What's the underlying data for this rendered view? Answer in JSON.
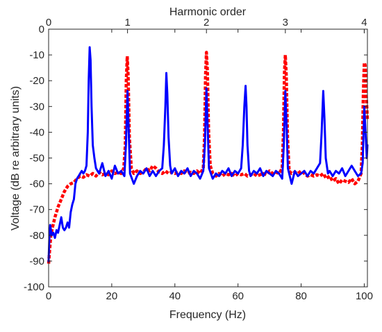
{
  "chart_data": {
    "type": "line",
    "xlabel": "Frequency (Hz)",
    "ylabel": "Voltage (dB re arbitrary units)",
    "top_axis_label": "Harmonic order",
    "xlim": [
      0,
      101
    ],
    "ylim": [
      -100,
      0
    ],
    "x_ticks": [
      0,
      20,
      40,
      60,
      80,
      100
    ],
    "y_ticks": [
      0,
      -10,
      -20,
      -30,
      -40,
      -50,
      -60,
      -70,
      -80,
      -90,
      -100
    ],
    "top_ticks": [
      {
        "label": "0",
        "x": 0
      },
      {
        "label": "1",
        "x": 25
      },
      {
        "label": "2",
        "x": 50
      },
      {
        "label": "3",
        "x": 75
      },
      {
        "label": "4",
        "x": 100
      }
    ],
    "grid": false,
    "series": [
      {
        "style": "dashed",
        "color": "#ff0000",
        "points": [
          [
            0,
            -91
          ],
          [
            0.3,
            -86
          ],
          [
            0.7,
            -80
          ],
          [
            1.2,
            -77
          ],
          [
            2,
            -73
          ],
          [
            3,
            -69
          ],
          [
            4,
            -66
          ],
          [
            5,
            -63
          ],
          [
            6,
            -61
          ],
          [
            7,
            -60
          ],
          [
            8,
            -59.5
          ],
          [
            9,
            -58
          ],
          [
            10,
            -57
          ],
          [
            11,
            -57.5
          ],
          [
            12,
            -56.5
          ],
          [
            13,
            -57
          ],
          [
            14,
            -56
          ],
          [
            15,
            -57
          ],
          [
            16,
            -55.5
          ],
          [
            17,
            -56.5
          ],
          [
            18,
            -56
          ],
          [
            19,
            -56.5
          ],
          [
            20,
            -55
          ],
          [
            21,
            -56
          ],
          [
            22,
            -55.5
          ],
          [
            23,
            -56
          ],
          [
            23.8,
            -54
          ],
          [
            24.3,
            -45
          ],
          [
            24.6,
            -20
          ],
          [
            24.9,
            -10.5
          ],
          [
            25.2,
            -18
          ],
          [
            25.6,
            -42
          ],
          [
            26.2,
            -54
          ],
          [
            27,
            -56
          ],
          [
            28,
            -55
          ],
          [
            29,
            -56
          ],
          [
            30,
            -55.5
          ],
          [
            31,
            -54
          ],
          [
            32,
            -55
          ],
          [
            33,
            -53
          ],
          [
            34,
            -54
          ],
          [
            35,
            -55.5
          ],
          [
            36,
            -56
          ],
          [
            37,
            -55
          ],
          [
            38,
            -56
          ],
          [
            39,
            -55.5
          ],
          [
            40,
            -56
          ],
          [
            41,
            -55.5
          ],
          [
            42,
            -56
          ],
          [
            43,
            -55
          ],
          [
            44,
            -56
          ],
          [
            45,
            -55.5
          ],
          [
            46,
            -56
          ],
          [
            47,
            -55
          ],
          [
            48,
            -56
          ],
          [
            49,
            -54
          ],
          [
            49.4,
            -42
          ],
          [
            49.7,
            -18
          ],
          [
            50,
            -9
          ],
          [
            50.3,
            -16
          ],
          [
            50.7,
            -40
          ],
          [
            51.2,
            -53
          ],
          [
            52,
            -56
          ],
          [
            53,
            -57
          ],
          [
            54,
            -56
          ],
          [
            55,
            -57
          ],
          [
            56,
            -56
          ],
          [
            57,
            -56.5
          ],
          [
            58,
            -56
          ],
          [
            59,
            -57
          ],
          [
            60,
            -56
          ],
          [
            61,
            -56.5
          ],
          [
            62,
            -56
          ],
          [
            63,
            -57
          ],
          [
            64,
            -56.5
          ],
          [
            65,
            -56
          ],
          [
            66,
            -57
          ],
          [
            67,
            -56.5
          ],
          [
            68,
            -56
          ],
          [
            69,
            -56.5
          ],
          [
            70,
            -55
          ],
          [
            71,
            -56
          ],
          [
            72,
            -55.5
          ],
          [
            73,
            -56
          ],
          [
            74,
            -54
          ],
          [
            74.4,
            -40
          ],
          [
            74.7,
            -17
          ],
          [
            75,
            -10
          ],
          [
            75.3,
            -18
          ],
          [
            75.7,
            -42
          ],
          [
            76.2,
            -55
          ],
          [
            77,
            -56
          ],
          [
            78,
            -55.5
          ],
          [
            79,
            -56
          ],
          [
            80,
            -55
          ],
          [
            81,
            -56
          ],
          [
            82,
            -57
          ],
          [
            83,
            -56.5
          ],
          [
            84,
            -57
          ],
          [
            85,
            -56.5
          ],
          [
            86,
            -57
          ],
          [
            87,
            -56
          ],
          [
            88,
            -58
          ],
          [
            89,
            -57
          ],
          [
            90,
            -59
          ],
          [
            91,
            -58
          ],
          [
            92,
            -60
          ],
          [
            93,
            -58.5
          ],
          [
            94,
            -59
          ],
          [
            95,
            -59.5
          ],
          [
            96,
            -58
          ],
          [
            97,
            -60
          ],
          [
            98,
            -59
          ],
          [
            99,
            -56
          ],
          [
            99.4,
            -45
          ],
          [
            99.7,
            -25
          ],
          [
            100,
            -13
          ],
          [
            100.3,
            -14
          ],
          [
            100.6,
            -25
          ],
          [
            101,
            -35
          ]
        ]
      },
      {
        "style": "solid",
        "color": "#0000ff",
        "points": [
          [
            0,
            -90
          ],
          [
            0.2,
            -82
          ],
          [
            0.5,
            -76
          ],
          [
            1,
            -80
          ],
          [
            1.5,
            -79
          ],
          [
            2,
            -81
          ],
          [
            2.5,
            -78
          ],
          [
            3,
            -79
          ],
          [
            3.5,
            -76
          ],
          [
            4,
            -73
          ],
          [
            4.5,
            -77
          ],
          [
            5,
            -78
          ],
          [
            5.5,
            -77
          ],
          [
            6,
            -75
          ],
          [
            6.5,
            -77
          ],
          [
            7,
            -71
          ],
          [
            7.5,
            -68
          ],
          [
            8,
            -66
          ],
          [
            8.5,
            -60
          ],
          [
            9,
            -58
          ],
          [
            9.5,
            -57
          ],
          [
            10,
            -56
          ],
          [
            10.5,
            -55
          ],
          [
            11,
            -56
          ],
          [
            11.5,
            -55
          ],
          [
            12,
            -53
          ],
          [
            12.4,
            -40
          ],
          [
            12.7,
            -20
          ],
          [
            13,
            -7
          ],
          [
            13.3,
            -12
          ],
          [
            13.6,
            -30
          ],
          [
            14,
            -45
          ],
          [
            14.5,
            -50
          ],
          [
            15,
            -54
          ],
          [
            16,
            -56
          ],
          [
            17,
            -52
          ],
          [
            18,
            -57
          ],
          [
            19,
            -55
          ],
          [
            20,
            -58
          ],
          [
            21,
            -53
          ],
          [
            22,
            -56
          ],
          [
            23,
            -55
          ],
          [
            24,
            -57
          ],
          [
            24.5,
            -45
          ],
          [
            25,
            -24
          ],
          [
            25.4,
            -40
          ],
          [
            25.8,
            -56
          ],
          [
            27,
            -60
          ],
          [
            28,
            -57
          ],
          [
            29,
            -55
          ],
          [
            30,
            -56
          ],
          [
            31,
            -54
          ],
          [
            32,
            -57
          ],
          [
            33,
            -55
          ],
          [
            34,
            -57
          ],
          [
            35,
            -55
          ],
          [
            36,
            -54
          ],
          [
            36.5,
            -45
          ],
          [
            37,
            -30
          ],
          [
            37.3,
            -17
          ],
          [
            37.6,
            -25
          ],
          [
            38,
            -42
          ],
          [
            38.5,
            -53
          ],
          [
            39,
            -56
          ],
          [
            40,
            -54
          ],
          [
            41,
            -57
          ],
          [
            42,
            -55
          ],
          [
            43,
            -56
          ],
          [
            44,
            -54
          ],
          [
            45,
            -57
          ],
          [
            46,
            -55
          ],
          [
            47,
            -56
          ],
          [
            48,
            -58
          ],
          [
            49,
            -55
          ],
          [
            49.5,
            -45
          ],
          [
            50,
            -23
          ],
          [
            50.4,
            -38
          ],
          [
            50.8,
            -54
          ],
          [
            52,
            -58
          ],
          [
            53,
            -56
          ],
          [
            54,
            -57
          ],
          [
            55,
            -55
          ],
          [
            56,
            -56
          ],
          [
            57,
            -54
          ],
          [
            58,
            -57
          ],
          [
            59,
            -55
          ],
          [
            60,
            -56
          ],
          [
            61,
            -54
          ],
          [
            61.5,
            -45
          ],
          [
            62,
            -30
          ],
          [
            62.4,
            -22
          ],
          [
            62.7,
            -30
          ],
          [
            63,
            -45
          ],
          [
            63.5,
            -55
          ],
          [
            64,
            -57
          ],
          [
            65,
            -55
          ],
          [
            66,
            -56
          ],
          [
            67,
            -54
          ],
          [
            68,
            -57
          ],
          [
            69,
            -55
          ],
          [
            70,
            -56
          ],
          [
            71,
            -57
          ],
          [
            72,
            -55
          ],
          [
            73,
            -56
          ],
          [
            74,
            -58
          ],
          [
            74.5,
            -45
          ],
          [
            75,
            -24
          ],
          [
            75.4,
            -38
          ],
          [
            75.8,
            -54
          ],
          [
            77,
            -60
          ],
          [
            78,
            -55
          ],
          [
            79,
            -57
          ],
          [
            80,
            -56
          ],
          [
            81,
            -55
          ],
          [
            82,
            -57
          ],
          [
            83,
            -55
          ],
          [
            84,
            -56
          ],
          [
            85,
            -54
          ],
          [
            86,
            -52
          ],
          [
            86.5,
            -40
          ],
          [
            87,
            -24
          ],
          [
            87.4,
            -35
          ],
          [
            87.8,
            -50
          ],
          [
            88.5,
            -56
          ],
          [
            89,
            -55
          ],
          [
            90,
            -57
          ],
          [
            91,
            -55
          ],
          [
            92,
            -56
          ],
          [
            93,
            -54
          ],
          [
            94,
            -57
          ],
          [
            95,
            -55
          ],
          [
            96,
            -53
          ],
          [
            97,
            -55
          ],
          [
            98,
            -57
          ],
          [
            99,
            -56
          ],
          [
            99.5,
            -52
          ],
          [
            100,
            -30
          ],
          [
            100.4,
            -40
          ],
          [
            100.8,
            -50
          ],
          [
            101,
            -45
          ]
        ]
      }
    ]
  }
}
